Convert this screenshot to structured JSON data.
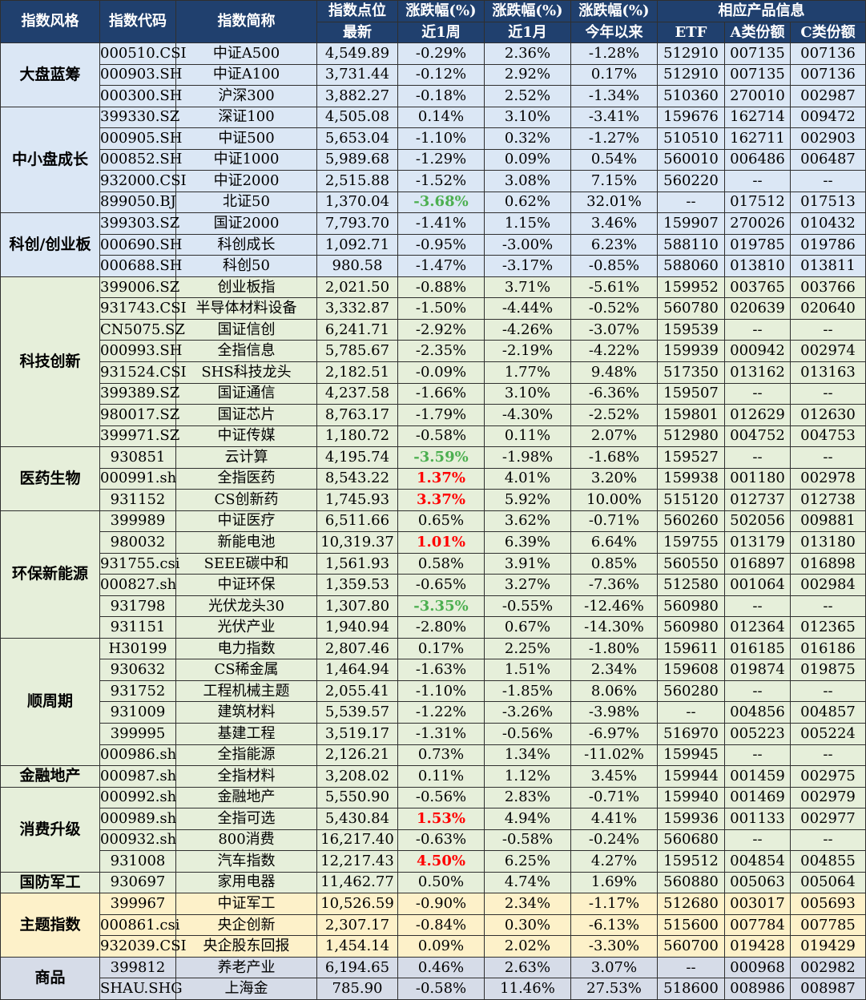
{
  "header": {
    "row1": {
      "style": "指数风格",
      "code": "指数代码",
      "name": "指数简称",
      "points": "指数点位",
      "week": "涨跌幅(%)",
      "month": "涨跌幅(%)",
      "ytd": "涨跌幅(%)",
      "products": "相应产品信息"
    },
    "row2": {
      "points": "最新",
      "week": "近1周",
      "month": "近1月",
      "ytd": "今年以来",
      "etf": "ETF",
      "a_share": "A类份额",
      "c_share": "C类份额"
    }
  },
  "colors": {
    "header_bg": "#20406e",
    "group_blue": "#dbe7f5",
    "group_green": "#e6efda",
    "group_yellow": "#fdf1c9",
    "group_gray": "#d6dce8",
    "up_red": "#ff0000",
    "down_green": "#4caf50"
  },
  "groups": [
    {
      "style": "大盘蓝筹",
      "color": "blue",
      "rows": [
        {
          "code": "000510.CSI",
          "name": "中证A500",
          "points": "4,549.89",
          "week": "-0.29%",
          "month": "2.36%",
          "ytd": "-1.28%",
          "etf": "512910",
          "a": "007135",
          "c": "007136",
          "hl": ""
        },
        {
          "code": "000903.SH",
          "name": "中证A100",
          "points": "3,731.44",
          "week": "-0.12%",
          "month": "2.92%",
          "ytd": "0.17%",
          "etf": "512910",
          "a": "007135",
          "c": "007136",
          "hl": ""
        },
        {
          "code": "000300.SH",
          "name": "沪深300",
          "points": "3,882.27",
          "week": "-0.18%",
          "month": "2.52%",
          "ytd": "-1.34%",
          "etf": "510360",
          "a": "270010",
          "c": "002987",
          "hl": ""
        }
      ]
    },
    {
      "style": "中小盘成长",
      "color": "blue",
      "rows": [
        {
          "code": "399330.SZ",
          "name": "深证100",
          "points": "4,505.08",
          "week": "0.14%",
          "month": "3.10%",
          "ytd": "-3.41%",
          "etf": "159676",
          "a": "162714",
          "c": "009472",
          "hl": ""
        },
        {
          "code": "000905.SH",
          "name": "中证500",
          "points": "5,653.04",
          "week": "-1.10%",
          "month": "0.32%",
          "ytd": "-1.27%",
          "etf": "510510",
          "a": "162711",
          "c": "002903",
          "hl": ""
        },
        {
          "code": "000852.SH",
          "name": "中证1000",
          "points": "5,989.68",
          "week": "-1.29%",
          "month": "0.09%",
          "ytd": "0.54%",
          "etf": "560010",
          "a": "006486",
          "c": "006487",
          "hl": ""
        },
        {
          "code": "932000.CSI",
          "name": "中证2000",
          "points": "2,515.88",
          "week": "-1.52%",
          "month": "3.08%",
          "ytd": "7.15%",
          "etf": "560220",
          "a": "--",
          "c": "--",
          "hl": ""
        },
        {
          "code": "899050.BJ",
          "name": "北证50",
          "points": "1,370.04",
          "week": "-3.68%",
          "month": "0.62%",
          "ytd": "32.01%",
          "etf": "--",
          "a": "017512",
          "c": "017513",
          "hl": "green"
        }
      ]
    },
    {
      "style": "科创/创业板",
      "color": "blue",
      "rows": [
        {
          "code": "399303.SZ",
          "name": "国证2000",
          "points": "7,793.70",
          "week": "-1.41%",
          "month": "1.15%",
          "ytd": "3.46%",
          "etf": "159907",
          "a": "270026",
          "c": "010432",
          "hl": ""
        },
        {
          "code": "000690.SH",
          "name": "科创成长",
          "points": "1,092.71",
          "week": "-0.95%",
          "month": "-3.00%",
          "ytd": "6.23%",
          "etf": "588110",
          "a": "019785",
          "c": "019786",
          "hl": ""
        },
        {
          "code": "000688.SH",
          "name": "科创50",
          "points": "980.58",
          "week": "-1.47%",
          "month": "-3.17%",
          "ytd": "-0.85%",
          "etf": "588060",
          "a": "013810",
          "c": "013811",
          "hl": ""
        }
      ]
    },
    {
      "style": "科技创新",
      "color": "green",
      "rows": [
        {
          "code": "399006.SZ",
          "name": "创业板指",
          "points": "2,021.50",
          "week": "-0.88%",
          "month": "3.71%",
          "ytd": "-5.61%",
          "etf": "159952",
          "a": "003765",
          "c": "003766",
          "hl": ""
        },
        {
          "code": "931743.CSI",
          "name": "半导体材料设备",
          "points": "3,332.87",
          "week": "-1.50%",
          "month": "-4.44%",
          "ytd": "-0.52%",
          "etf": "560780",
          "a": "020639",
          "c": "020640",
          "hl": ""
        },
        {
          "code": "CN5075.SZ",
          "name": "国证信创",
          "points": "6,241.71",
          "week": "-2.92%",
          "month": "-4.26%",
          "ytd": "-3.07%",
          "etf": "159539",
          "a": "--",
          "c": "--",
          "hl": ""
        },
        {
          "code": "000993.SH",
          "name": "全指信息",
          "points": "5,785.67",
          "week": "-2.35%",
          "month": "-2.19%",
          "ytd": "-4.22%",
          "etf": "159939",
          "a": "000942",
          "c": "002974",
          "hl": ""
        },
        {
          "code": "931524.CSI",
          "name": "SHS科技龙头",
          "points": "2,182.51",
          "week": "-0.09%",
          "month": "1.77%",
          "ytd": "9.48%",
          "etf": "517350",
          "a": "013162",
          "c": "013163",
          "hl": ""
        },
        {
          "code": "399389.SZ",
          "name": "国证通信",
          "points": "4,237.58",
          "week": "-1.66%",
          "month": "3.10%",
          "ytd": "-6.36%",
          "etf": "159507",
          "a": "--",
          "c": "--",
          "hl": ""
        },
        {
          "code": "980017.SZ",
          "name": "国证芯片",
          "points": "8,763.17",
          "week": "-1.79%",
          "month": "-4.30%",
          "ytd": "-2.52%",
          "etf": "159801",
          "a": "012629",
          "c": "012630",
          "hl": ""
        },
        {
          "code": "399971.SZ",
          "name": "中证传媒",
          "points": "1,180.72",
          "week": "-0.58%",
          "month": "0.11%",
          "ytd": "2.07%",
          "etf": "512980",
          "a": "004752",
          "c": "004753",
          "hl": ""
        }
      ]
    },
    {
      "style": "医药生物",
      "color": "green",
      "rows": [
        {
          "code": "930851",
          "name": "云计算",
          "points": "4,195.74",
          "week": "-3.59%",
          "month": "-1.98%",
          "ytd": "-1.68%",
          "etf": "159527",
          "a": "--",
          "c": "--",
          "hl": "green"
        },
        {
          "code": "000991.sh",
          "name": "全指医药",
          "points": "8,543.22",
          "week": "1.37%",
          "month": "4.01%",
          "ytd": "3.20%",
          "etf": "159938",
          "a": "001180",
          "c": "002978",
          "hl": "red"
        },
        {
          "code": "931152",
          "name": "CS创新药",
          "points": "1,745.93",
          "week": "3.37%",
          "month": "5.92%",
          "ytd": "10.00%",
          "etf": "515120",
          "a": "012737",
          "c": "012738",
          "hl": "red"
        }
      ]
    },
    {
      "style": "环保新能源",
      "color": "green",
      "rows": [
        {
          "code": "399989",
          "name": "中证医疗",
          "points": "6,511.66",
          "week": "0.65%",
          "month": "3.62%",
          "ytd": "-0.71%",
          "etf": "560260",
          "a": "502056",
          "c": "009881",
          "hl": ""
        },
        {
          "code": "980032",
          "name": "新能电池",
          "points": "10,319.37",
          "week": "1.01%",
          "month": "6.39%",
          "ytd": "6.64%",
          "etf": "159755",
          "a": "013179",
          "c": "013180",
          "hl": "red"
        },
        {
          "code": "931755.csi",
          "name": "SEEE碳中和",
          "points": "1,561.93",
          "week": "0.58%",
          "month": "3.91%",
          "ytd": "0.85%",
          "etf": "560550",
          "a": "016897",
          "c": "016898",
          "hl": ""
        },
        {
          "code": "000827.sh",
          "name": "中证环保",
          "points": "1,359.53",
          "week": "-0.65%",
          "month": "3.27%",
          "ytd": "-7.36%",
          "etf": "512580",
          "a": "001064",
          "c": "002984",
          "hl": ""
        },
        {
          "code": "931798",
          "name": "光伏龙头30",
          "points": "1,307.80",
          "week": "-3.35%",
          "month": "-0.55%",
          "ytd": "-12.46%",
          "etf": "560980",
          "a": "--",
          "c": "--",
          "hl": "green"
        },
        {
          "code": "931151",
          "name": "光伏产业",
          "points": "1,940.94",
          "week": "-2.80%",
          "month": "0.67%",
          "ytd": "-14.30%",
          "etf": "560980",
          "a": "012364",
          "c": "012365",
          "hl": ""
        }
      ]
    },
    {
      "style": "顺周期",
      "color": "green",
      "rows": [
        {
          "code": "H30199",
          "name": "电力指数",
          "points": "2,807.46",
          "week": "0.17%",
          "month": "2.25%",
          "ytd": "-1.80%",
          "etf": "159611",
          "a": "016185",
          "c": "016186",
          "hl": ""
        },
        {
          "code": "930632",
          "name": "CS稀金属",
          "points": "1,464.94",
          "week": "-1.63%",
          "month": "1.51%",
          "ytd": "2.34%",
          "etf": "159608",
          "a": "019874",
          "c": "019875",
          "hl": ""
        },
        {
          "code": "931752",
          "name": "工程机械主题",
          "points": "2,055.41",
          "week": "-1.10%",
          "month": "-1.85%",
          "ytd": "8.06%",
          "etf": "560280",
          "a": "--",
          "c": "--",
          "hl": ""
        },
        {
          "code": "931009",
          "name": "建筑材料",
          "points": "5,539.57",
          "week": "-1.22%",
          "month": "-3.26%",
          "ytd": "-3.98%",
          "etf": "--",
          "a": "004856",
          "c": "004857",
          "hl": ""
        },
        {
          "code": "399995",
          "name": "基建工程",
          "points": "3,519.17",
          "week": "-1.31%",
          "month": "-0.56%",
          "ytd": "-6.97%",
          "etf": "516970",
          "a": "005223",
          "c": "005224",
          "hl": ""
        },
        {
          "code": "000986.sh",
          "name": "全指能源",
          "points": "2,126.21",
          "week": "0.73%",
          "month": "1.34%",
          "ytd": "-11.02%",
          "etf": "159945",
          "a": "--",
          "c": "--",
          "hl": ""
        }
      ]
    },
    {
      "style": "金融地产",
      "color": "green",
      "rows": [
        {
          "code": "000987.sh",
          "name": "全指材料",
          "points": "3,208.02",
          "week": "0.11%",
          "month": "1.12%",
          "ytd": "3.45%",
          "etf": "159944",
          "a": "001459",
          "c": "002975",
          "hl": ""
        }
      ]
    },
    {
      "style": "消费升级",
      "color": "green",
      "rows": [
        {
          "code": "000992.sh",
          "name": "金融地产",
          "points": "5,550.90",
          "week": "-0.56%",
          "month": "2.83%",
          "ytd": "-0.71%",
          "etf": "159940",
          "a": "001469",
          "c": "002979",
          "hl": ""
        },
        {
          "code": "000989.sh",
          "name": "全指可选",
          "points": "5,430.84",
          "week": "1.53%",
          "month": "4.94%",
          "ytd": "4.41%",
          "etf": "159936",
          "a": "001133",
          "c": "002977",
          "hl": "red"
        },
        {
          "code": "000932.sh",
          "name": "800消费",
          "points": "16,217.40",
          "week": "-0.63%",
          "month": "-0.58%",
          "ytd": "-0.24%",
          "etf": "560680",
          "a": "--",
          "c": "--",
          "hl": ""
        },
        {
          "code": "931008",
          "name": "汽车指数",
          "points": "12,217.43",
          "week": "4.50%",
          "month": "6.25%",
          "ytd": "4.27%",
          "etf": "159512",
          "a": "004854",
          "c": "004855",
          "hl": "red"
        }
      ]
    },
    {
      "style": "国防军工",
      "color": "green",
      "rows": [
        {
          "code": "930697",
          "name": "家用电器",
          "points": "11,462.77",
          "week": "0.50%",
          "month": "4.74%",
          "ytd": "1.69%",
          "etf": "560880",
          "a": "005063",
          "c": "005064",
          "hl": ""
        }
      ]
    },
    {
      "style": "主题指数",
      "color": "yellow",
      "rows": [
        {
          "code": "399967",
          "name": "中证军工",
          "points": "10,526.59",
          "week": "-0.90%",
          "month": "2.34%",
          "ytd": "-1.17%",
          "etf": "512680",
          "a": "003017",
          "c": "005693",
          "hl": ""
        },
        {
          "code": "000861.csi",
          "name": "央企创新",
          "points": "2,307.17",
          "week": "-0.84%",
          "month": "0.30%",
          "ytd": "-6.13%",
          "etf": "515600",
          "a": "007784",
          "c": "007785",
          "hl": ""
        },
        {
          "code": "932039.CSI",
          "name": "央企股东回报",
          "points": "1,454.14",
          "week": "0.09%",
          "month": "2.02%",
          "ytd": "-3.30%",
          "etf": "560700",
          "a": "019428",
          "c": "019429",
          "hl": ""
        }
      ]
    },
    {
      "style": "商品",
      "color": "gray",
      "rows": [
        {
          "code": "399812",
          "name": "养老产业",
          "points": "6,194.65",
          "week": "0.46%",
          "month": "2.63%",
          "ytd": "3.07%",
          "etf": "--",
          "a": "000968",
          "c": "002982",
          "hl": ""
        },
        {
          "code": "SHAU.SHG",
          "name": "上海金",
          "points": "785.90",
          "week": "-0.58%",
          "month": "11.46%",
          "ytd": "27.53%",
          "etf": "518600",
          "a": "008986",
          "c": "008987",
          "hl": ""
        }
      ]
    }
  ]
}
